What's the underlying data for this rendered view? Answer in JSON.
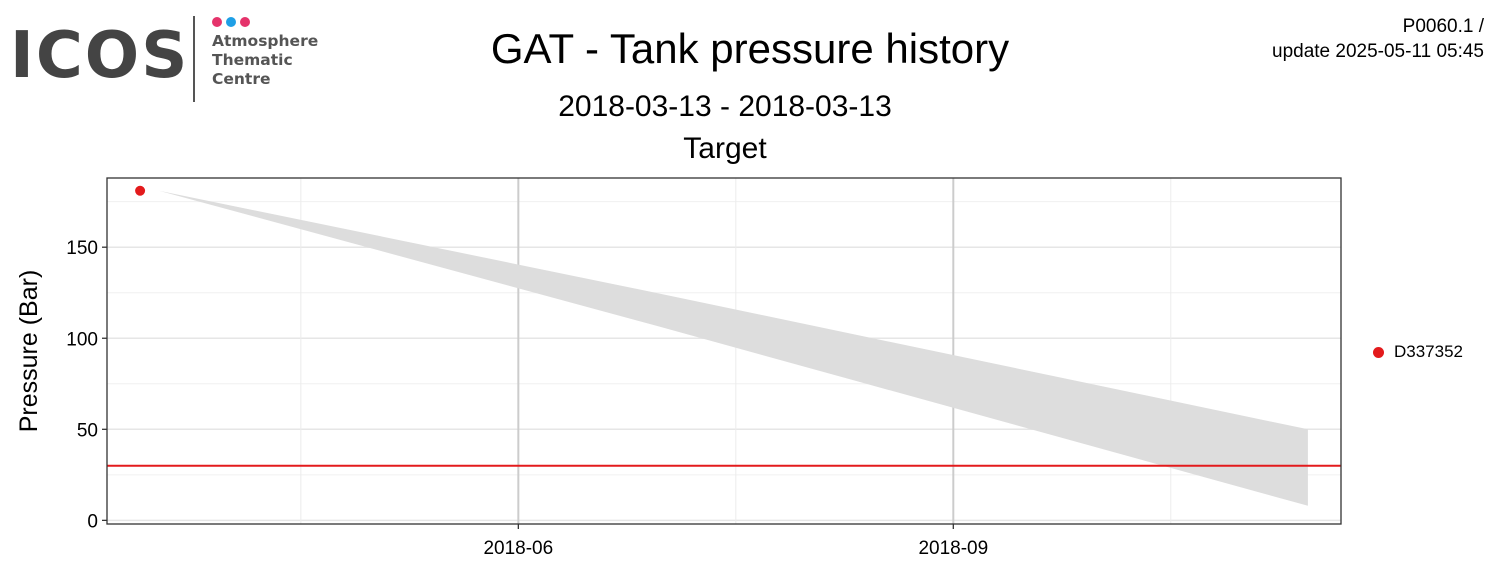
{
  "logo": {
    "wordmark": "ICOS",
    "lines": [
      "Atmosphere",
      "Thematic",
      "Centre"
    ],
    "dot_colors": [
      "#e5336b",
      "#1e9fe6",
      "#e5336b"
    ]
  },
  "header": {
    "title": "GAT - Tank pressure history",
    "date_range": "2018-03-13 - 2018-03-13",
    "version": "P0060.1 /",
    "update": "update  2025-05-11 05:45"
  },
  "chart_data": {
    "type": "scatter",
    "title": "Target",
    "ylabel": "Pressure (Bar)",
    "xlabel": "",
    "x_ticks": [
      "2018-06",
      "2018-09"
    ],
    "x_tick_dates": [
      "2018-06-01",
      "2018-09-01"
    ],
    "x_range": [
      "2018-03-06",
      "2018-11-22"
    ],
    "ylim": [
      -2,
      188
    ],
    "y_ticks": [
      0,
      50,
      100,
      150
    ],
    "grid": true,
    "series": [
      {
        "name": "D337352",
        "color": "#e31a1c",
        "points": [
          {
            "x": "2018-03-13",
            "y": 181
          }
        ]
      }
    ],
    "confidence_band": {
      "color": "#dddddd",
      "upper": [
        {
          "x": "2018-03-17",
          "y": 181
        },
        {
          "x": "2018-06-30",
          "y": 125
        },
        {
          "x": "2018-11-15",
          "y": 50
        }
      ],
      "lower": [
        {
          "x": "2018-03-17",
          "y": 181
        },
        {
          "x": "2018-06-30",
          "y": 107
        },
        {
          "x": "2018-11-15",
          "y": 8
        }
      ]
    },
    "threshold": {
      "y": 30,
      "color": "#e31a1c"
    },
    "legend_position": "right"
  }
}
